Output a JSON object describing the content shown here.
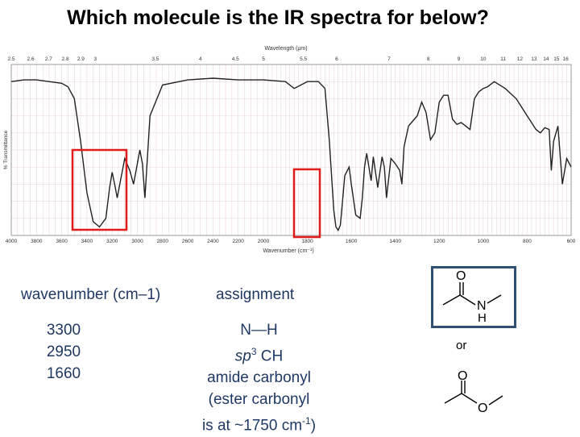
{
  "title": "Which molecule is the IR spectra for below?",
  "chart_data": {
    "type": "line",
    "top_axis_label": "Wavelength (μm)",
    "top_ticks": [
      "2.5",
      "2.6",
      "2.7",
      "2.8",
      "2.9",
      "3",
      "3.5",
      "4",
      "4.5",
      "5",
      "5.5",
      "6",
      "7",
      "8",
      "9",
      "10",
      "11",
      "12",
      "13",
      "14",
      "15",
      "16"
    ],
    "xlabel": "Wavenumber (cm⁻¹)",
    "ylabel": "% Transmittance",
    "bottom_ticks": [
      "4000",
      "3800",
      "3600",
      "3400",
      "3200",
      "3000",
      "2800",
      "2600",
      "2400",
      "2200",
      "2000",
      "1800",
      "1600",
      "1400",
      "1200",
      "1000",
      "800",
      "600"
    ],
    "xlim": [
      4000,
      600
    ],
    "ylim": [
      0,
      100
    ],
    "grid": true,
    "series": [
      {
        "x": [
          4000,
          3900,
          3800,
          3700,
          3600,
          3550,
          3500,
          3450,
          3400,
          3350,
          3300,
          3250,
          3220,
          3200,
          3180,
          3160,
          3100,
          3060,
          3030,
          3000,
          2980,
          2960,
          2940,
          2900,
          2800,
          2600,
          2400,
          2200,
          2000,
          1900,
          1860,
          1800,
          1750,
          1720,
          1700,
          1680,
          1670,
          1660,
          1650,
          1640,
          1630,
          1610,
          1600,
          1580,
          1560,
          1550,
          1540,
          1530,
          1510,
          1500,
          1480,
          1460,
          1450,
          1440,
          1420,
          1400,
          1380,
          1370,
          1360,
          1340,
          1300,
          1280,
          1260,
          1240,
          1220,
          1200,
          1180,
          1160,
          1140,
          1120,
          1100,
          1080,
          1060,
          1040,
          1020,
          1000,
          980,
          950,
          900,
          850,
          800,
          780,
          760,
          740,
          720,
          700,
          690,
          680,
          660,
          640,
          620,
          600
        ],
        "y": [
          90,
          91,
          91,
          90,
          89,
          87,
          80,
          55,
          25,
          8,
          5,
          10,
          28,
          37,
          30,
          22,
          45,
          38,
          30,
          42,
          50,
          42,
          22,
          70,
          88,
          91,
          92,
          91,
          91,
          90,
          86,
          90,
          90,
          86,
          55,
          15,
          5,
          3,
          6,
          20,
          35,
          40,
          30,
          12,
          10,
          22,
          40,
          48,
          32,
          46,
          28,
          46,
          40,
          22,
          45,
          42,
          38,
          30,
          52,
          64,
          70,
          78,
          72,
          56,
          60,
          78,
          82,
          82,
          68,
          65,
          66,
          64,
          62,
          80,
          84,
          86,
          87,
          90,
          86,
          80,
          70,
          66,
          62,
          60,
          63,
          62,
          38,
          55,
          64,
          30,
          45,
          40
        ]
      }
    ]
  },
  "table": {
    "wavenumber_header": "wavenumber (cm–1)",
    "assignment_header": "assignment",
    "wavenumbers": [
      "3300",
      "2950",
      "1660"
    ],
    "assignment_nh": "N—H",
    "assignment_sp3_prefix": "sp",
    "assignment_sp3_sup": "3",
    "assignment_sp3_suffix": " CH",
    "assignment_amide": "amide carbonyl",
    "assignment_ester_line1": "(ester carbonyl",
    "assignment_ester_line2_prefix": "is at ~1750 cm",
    "assignment_ester_sup": "-1",
    "assignment_ester_line2_suffix": ")"
  },
  "molecules": {
    "amide_o_label": "O",
    "amide_n_label": "N",
    "amide_h_label": "H",
    "or_text": "or",
    "ester_o_top_label": "O",
    "ester_o_label": "O"
  },
  "colors": {
    "highlight": "#e01b1b",
    "text_blue": "#1f3864",
    "mol_box": "#2f4f73",
    "grid": "#e6d0d0",
    "trace": "#222222"
  }
}
